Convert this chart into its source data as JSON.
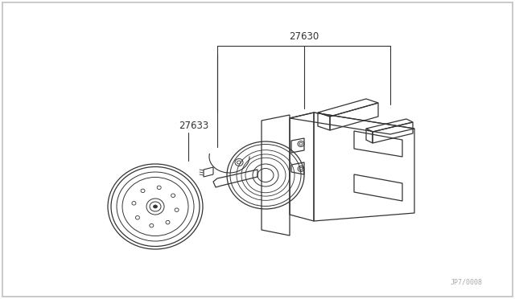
{
  "background_color": "#ffffff",
  "line_color": "#333333",
  "label_color": "#333333",
  "label_27630": "27630",
  "label_27633": "27633",
  "watermark": "JP7/0008",
  "fig_width": 6.4,
  "fig_height": 3.72,
  "dpi": 100
}
